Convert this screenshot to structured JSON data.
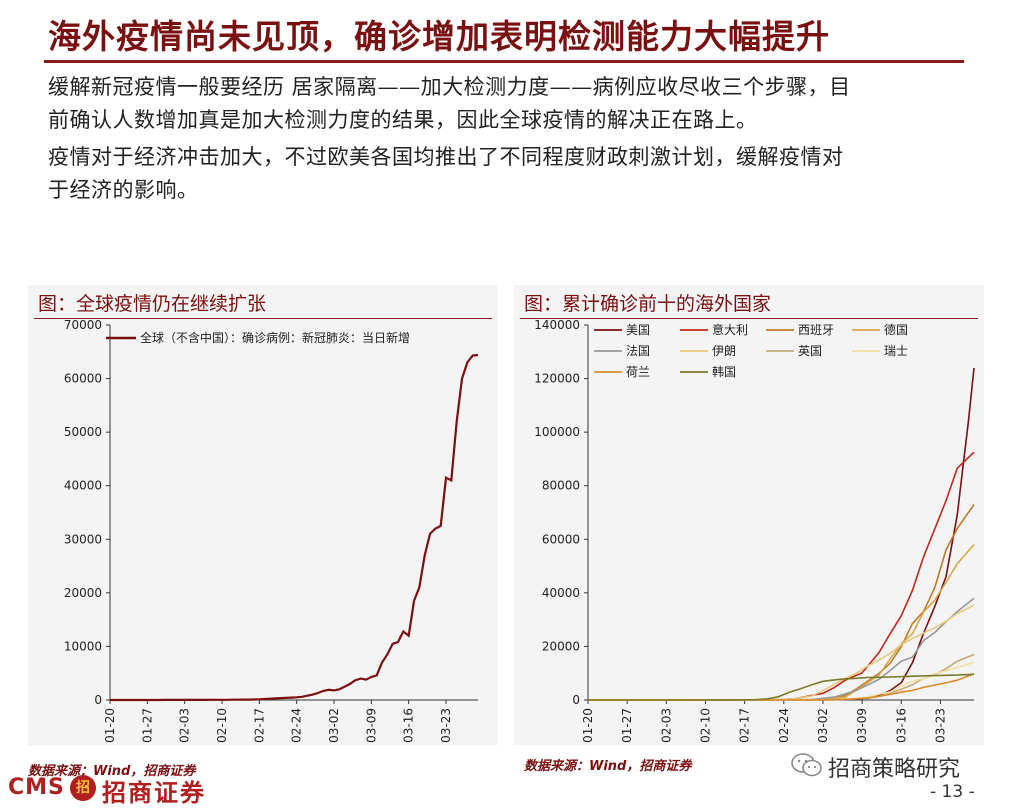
{
  "title": "海外疫情尚未见顶，确诊增加表明检测能力大幅提升",
  "paragraphs": [
    {
      "line1": "缓解新冠疫情一般要经历 居家隔离——加大检测力度——病例应收尽收三个步骤，目",
      "line2": "前确认人数增加真是加大检测力度的结果，因此全球疫情的解决正在路上。"
    },
    {
      "line1": "疫情对于经济冲击加大，不过欧美各国均推出了不同程度财政刺激计划，缓解疫情对",
      "line2": "于经济的影响。"
    }
  ],
  "source_label": "数据来源：Wind，招商证券",
  "logo": {
    "cms": "CMS",
    "mark": "招",
    "name": "招商证券"
  },
  "wechat_account": "招商策略研究",
  "page_number": "- 13 -",
  "chart_data": [
    {
      "type": "line",
      "title": "图：全球疫情仍在继续扩张",
      "legend_position": "top-left",
      "ylim": [
        0,
        70000
      ],
      "yticks": [
        0,
        10000,
        20000,
        30000,
        40000,
        50000,
        60000,
        70000
      ],
      "xticks": [
        "01-20",
        "01-27",
        "02-03",
        "02-10",
        "02-17",
        "02-24",
        "03-02",
        "03-09",
        "03-16",
        "03-23"
      ],
      "x": [
        "01-20",
        "01-21",
        "01-22",
        "01-23",
        "01-24",
        "01-25",
        "01-26",
        "01-27",
        "01-28",
        "01-29",
        "01-30",
        "01-31",
        "02-01",
        "02-02",
        "02-03",
        "02-04",
        "02-05",
        "02-06",
        "02-07",
        "02-08",
        "02-09",
        "02-10",
        "02-11",
        "02-12",
        "02-13",
        "02-14",
        "02-15",
        "02-16",
        "02-17",
        "02-18",
        "02-19",
        "02-20",
        "02-21",
        "02-22",
        "02-23",
        "02-24",
        "02-25",
        "02-26",
        "02-27",
        "02-28",
        "02-29",
        "03-01",
        "03-02",
        "03-03",
        "03-04",
        "03-05",
        "03-06",
        "03-07",
        "03-08",
        "03-09",
        "03-10",
        "03-11",
        "03-12",
        "03-13",
        "03-14",
        "03-15",
        "03-16",
        "03-17",
        "03-18",
        "03-19",
        "03-20",
        "03-21",
        "03-22",
        "03-23",
        "03-24",
        "03-25",
        "03-26",
        "03-27",
        "03-28",
        "03-29"
      ],
      "series": [
        {
          "name": "全球（不含中国）：确诊病例：新冠肺炎：当日新增",
          "color": "#7b1010",
          "values": [
            0,
            0,
            2,
            2,
            3,
            4,
            5,
            5,
            6,
            8,
            10,
            10,
            12,
            15,
            18,
            20,
            22,
            25,
            28,
            30,
            35,
            40,
            45,
            50,
            60,
            70,
            80,
            100,
            130,
            180,
            250,
            300,
            350,
            400,
            450,
            500,
            600,
            800,
            1000,
            1300,
            1700,
            1900,
            1800,
            2000,
            2500,
            3000,
            3700,
            4000,
            3800,
            4300,
            4600,
            7000,
            8500,
            10500,
            10800,
            12800,
            12000,
            18500,
            21000,
            27000,
            31000,
            32000,
            32500,
            41500,
            41000,
            52000,
            60000,
            63000,
            64300,
            64400
          ]
        }
      ]
    },
    {
      "type": "line",
      "title": "图：累计确诊前十的海外国家",
      "legend_position": "top-left",
      "ylim": [
        0,
        140000
      ],
      "yticks": [
        0,
        20000,
        40000,
        60000,
        80000,
        100000,
        120000,
        140000
      ],
      "xticks": [
        "01-20",
        "01-27",
        "02-03",
        "02-10",
        "02-17",
        "02-24",
        "03-02",
        "03-09",
        "03-16",
        "03-23"
      ],
      "x_range": [
        "01-20",
        "03-29"
      ],
      "series": [
        {
          "name": "美国",
          "color": "#7b1010",
          "points": [
            [
              0,
              0
            ],
            [
              40,
              15
            ],
            [
              45,
              100
            ],
            [
              50,
              700
            ],
            [
              52,
              1600
            ],
            [
              54,
              3500
            ],
            [
              56,
              6500
            ],
            [
              58,
              14000
            ],
            [
              60,
              25000
            ],
            [
              62,
              35000
            ],
            [
              64,
              46000
            ],
            [
              66,
              69000
            ],
            [
              68,
              104000
            ],
            [
              69,
              124000
            ]
          ]
        },
        {
          "name": "意大利",
          "color": "#c0281e",
          "points": [
            [
              0,
              0
            ],
            [
              30,
              3
            ],
            [
              35,
              150
            ],
            [
              37,
              470
            ],
            [
              40,
              1700
            ],
            [
              42,
              2500
            ],
            [
              44,
              4600
            ],
            [
              46,
              7400
            ],
            [
              49,
              10100
            ],
            [
              52,
              17700
            ],
            [
              54,
              24700
            ],
            [
              56,
              31500
            ],
            [
              58,
              41000
            ],
            [
              60,
              53600
            ],
            [
              62,
              63900
            ],
            [
              64,
              74400
            ],
            [
              66,
              86500
            ],
            [
              69,
              92500
            ]
          ]
        },
        {
          "name": "西班牙",
          "color": "#c0782a",
          "points": [
            [
              0,
              0
            ],
            [
              36,
              10
            ],
            [
              40,
              120
            ],
            [
              43,
              400
            ],
            [
              46,
              1600
            ],
            [
              48,
              4200
            ],
            [
              52,
              9900
            ],
            [
              54,
              13700
            ],
            [
              56,
              19900
            ],
            [
              58,
              28600
            ],
            [
              60,
              33100
            ],
            [
              62,
              42000
            ],
            [
              64,
              56000
            ],
            [
              66,
              64000
            ],
            [
              69,
              73000
            ]
          ]
        },
        {
          "name": "德国",
          "color": "#d6a84a",
          "points": [
            [
              0,
              0
            ],
            [
              10,
              5
            ],
            [
              36,
              20
            ],
            [
              40,
              160
            ],
            [
              44,
              800
            ],
            [
              46,
              1100
            ],
            [
              48,
              3700
            ],
            [
              52,
              9300
            ],
            [
              54,
              15300
            ],
            [
              56,
              21000
            ],
            [
              58,
              24800
            ],
            [
              60,
              32900
            ],
            [
              62,
              37300
            ],
            [
              64,
              43900
            ],
            [
              66,
              50900
            ],
            [
              69,
              58000
            ]
          ]
        },
        {
          "name": "法国",
          "color": "#999999",
          "points": [
            [
              0,
              0
            ],
            [
              8,
              5
            ],
            [
              38,
              100
            ],
            [
              40,
              200
            ],
            [
              44,
              1100
            ],
            [
              46,
              2300
            ],
            [
              48,
              3600
            ],
            [
              52,
              7700
            ],
            [
              54,
              11000
            ],
            [
              56,
              14500
            ],
            [
              58,
              16000
            ],
            [
              60,
              22300
            ],
            [
              62,
              25200
            ],
            [
              64,
              29200
            ],
            [
              66,
              33000
            ],
            [
              69,
              38000
            ]
          ]
        },
        {
          "name": "伊朗",
          "color": "#e8c87a",
          "points": [
            [
              0,
              0
            ],
            [
              30,
              2
            ],
            [
              33,
              40
            ],
            [
              36,
              250
            ],
            [
              40,
              1500
            ],
            [
              42,
              3500
            ],
            [
              44,
              5800
            ],
            [
              46,
              8000
            ],
            [
              48,
              10000
            ],
            [
              50,
              12700
            ],
            [
              52,
              14900
            ],
            [
              54,
              17400
            ],
            [
              56,
              20600
            ],
            [
              58,
              23000
            ],
            [
              60,
              25000
            ],
            [
              62,
              27000
            ],
            [
              64,
              29400
            ],
            [
              66,
              32300
            ],
            [
              69,
              35400
            ]
          ]
        },
        {
          "name": "英国",
          "color": "#c9a878",
          "points": [
            [
              0,
              0
            ],
            [
              40,
              30
            ],
            [
              44,
              200
            ],
            [
              48,
              500
            ],
            [
              50,
              800
            ],
            [
              52,
              1300
            ],
            [
              54,
              2600
            ],
            [
              56,
              4000
            ],
            [
              58,
              5700
            ],
            [
              60,
              8100
            ],
            [
              62,
              9500
            ],
            [
              64,
              11700
            ],
            [
              66,
              14500
            ],
            [
              69,
              17000
            ]
          ]
        },
        {
          "name": "瑞士",
          "color": "#f0e0a0",
          "points": [
            [
              0,
              0
            ],
            [
              38,
              1
            ],
            [
              42,
              60
            ],
            [
              44,
              200
            ],
            [
              46,
              370
            ],
            [
              48,
              650
            ],
            [
              50,
              1100
            ],
            [
              52,
              2200
            ],
            [
              54,
              3000
            ],
            [
              56,
              5300
            ],
            [
              58,
              7000
            ],
            [
              60,
              8000
            ],
            [
              62,
              9800
            ],
            [
              64,
              10900
            ],
            [
              66,
              12100
            ],
            [
              69,
              14100
            ]
          ]
        },
        {
          "name": "荷兰",
          "color": "#d88a2a",
          "points": [
            [
              0,
              0
            ],
            [
              38,
              1
            ],
            [
              42,
              30
            ],
            [
              44,
              130
            ],
            [
              46,
              250
            ],
            [
              48,
              450
            ],
            [
              50,
              800
            ],
            [
              52,
              1400
            ],
            [
              54,
              2100
            ],
            [
              56,
              2900
            ],
            [
              58,
              3600
            ],
            [
              60,
              4700
            ],
            [
              62,
              5600
            ],
            [
              64,
              6400
            ],
            [
              66,
              7400
            ],
            [
              69,
              9800
            ]
          ]
        },
        {
          "name": "韩国",
          "color": "#7a7a2a",
          "points": [
            [
              0,
              0
            ],
            [
              14,
              15
            ],
            [
              26,
              30
            ],
            [
              30,
              100
            ],
            [
              32,
              400
            ],
            [
              34,
              1200
            ],
            [
              36,
              2900
            ],
            [
              38,
              4200
            ],
            [
              40,
              5700
            ],
            [
              42,
              7000
            ],
            [
              44,
              7500
            ],
            [
              46,
              7900
            ],
            [
              48,
              8100
            ],
            [
              50,
              8400
            ],
            [
              54,
              8600
            ],
            [
              58,
              8900
            ],
            [
              62,
              9100
            ],
            [
              66,
              9300
            ],
            [
              69,
              9600
            ]
          ]
        }
      ]
    }
  ]
}
